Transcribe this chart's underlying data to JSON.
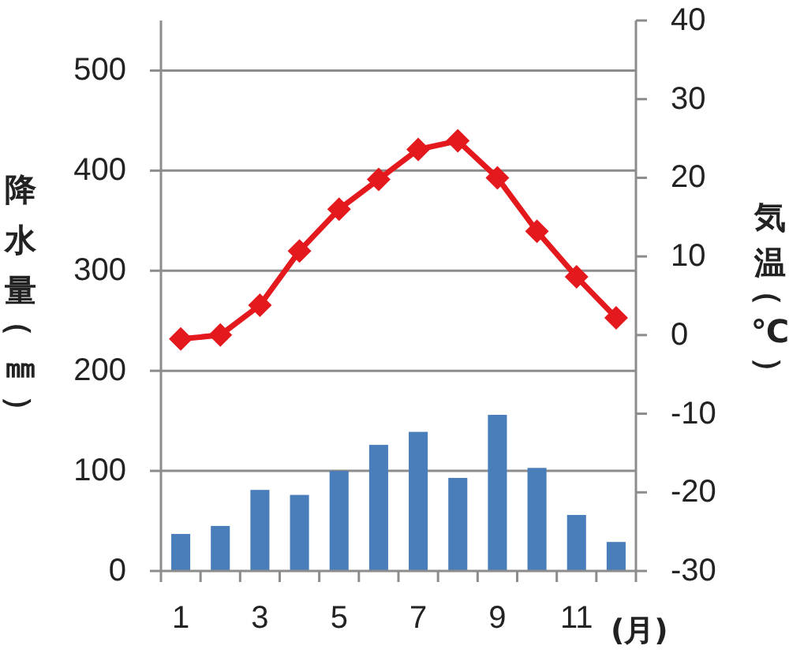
{
  "chart_data": {
    "type": "bar",
    "categories": [
      "1",
      null,
      "3",
      null,
      "5",
      null,
      "7",
      null,
      "9",
      null,
      "11",
      null
    ],
    "xlabel": "(月)",
    "ylabel": "降水量（㎜）",
    "y2label": "気温（℃）",
    "ylim": [
      0,
      550
    ],
    "yticks": [
      0,
      100,
      200,
      300,
      400,
      500
    ],
    "y2lim": [
      -30,
      40
    ],
    "y2ticks": [
      -30,
      -20,
      -10,
      0,
      10,
      20,
      30,
      40
    ],
    "grid": "y",
    "series": [
      {
        "color": "#4a7ebb",
        "values": [
          37,
          45,
          81,
          76,
          100,
          126,
          139,
          93,
          156,
          103,
          56,
          29
        ]
      },
      {
        "type": "line",
        "axis": "y2",
        "color": "#e3191e",
        "marker": "diamond",
        "values": [
          -0.5,
          0,
          3.8,
          10.7,
          16,
          19.8,
          23.6,
          24.7,
          20,
          13.2,
          7.4,
          2.2
        ]
      }
    ]
  }
}
